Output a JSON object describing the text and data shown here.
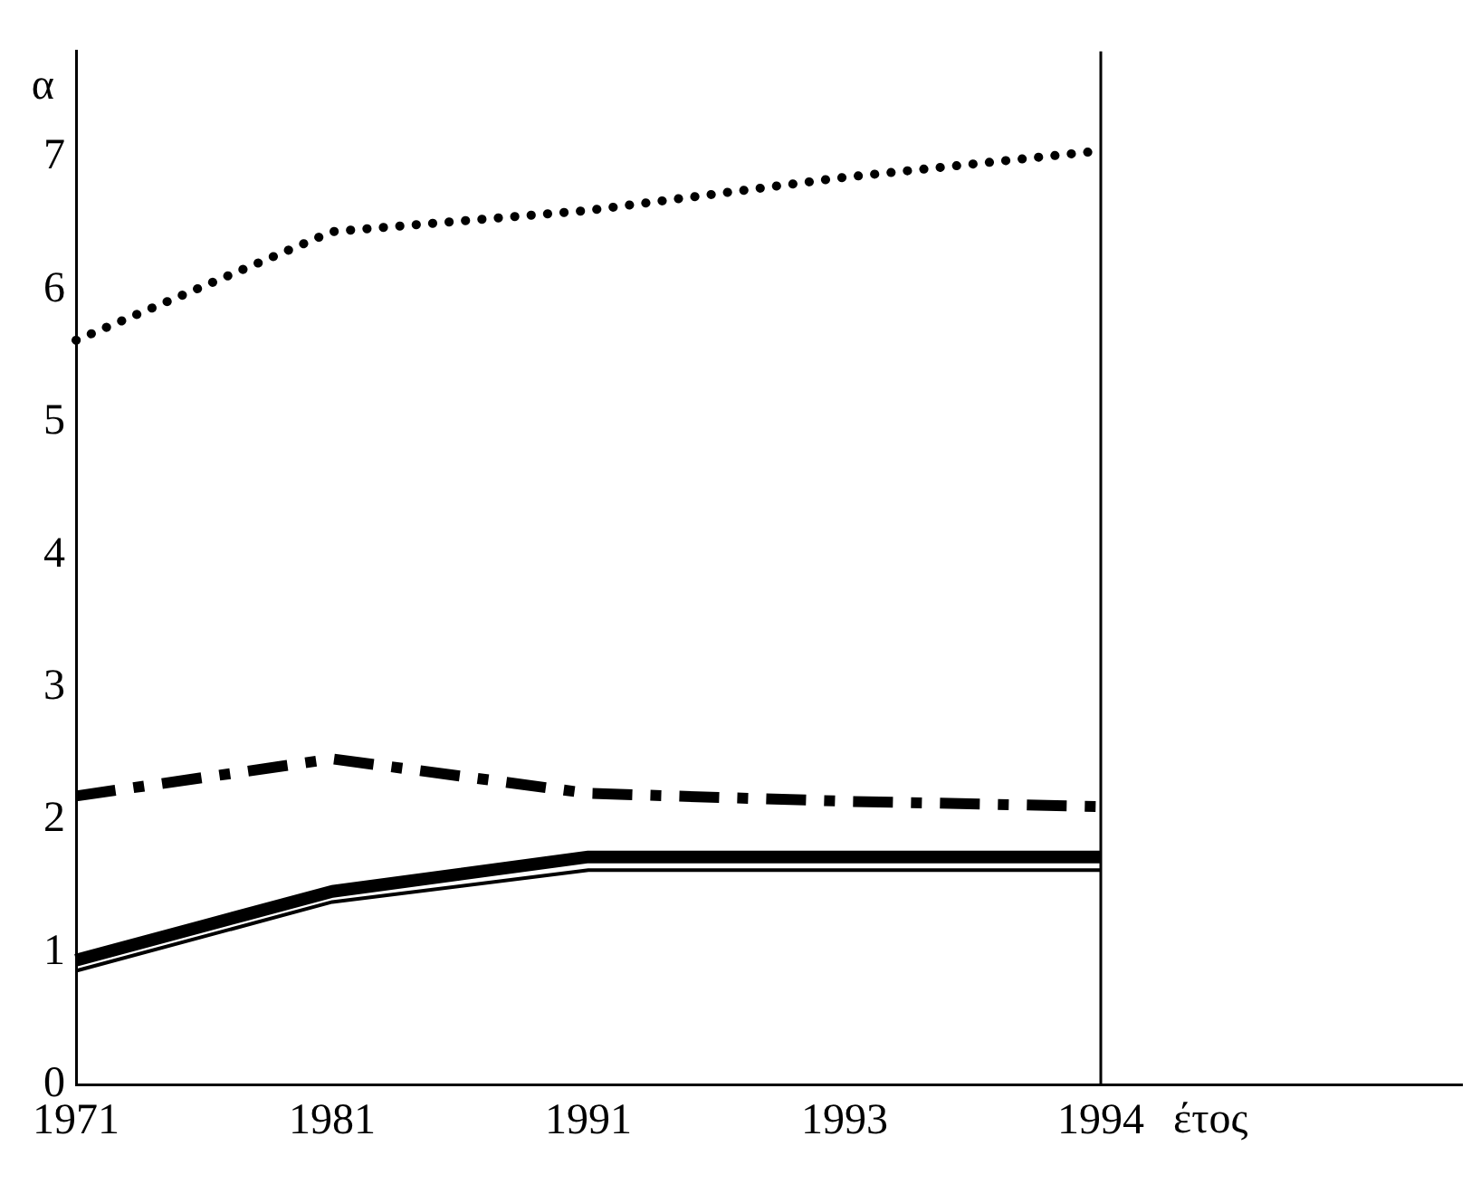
{
  "chart_data": {
    "type": "line",
    "xlabel": "έτος",
    "ylabel": "α",
    "categories": [
      "1971",
      "1981",
      "1991",
      "1993",
      "1994"
    ],
    "series": [
      {
        "color": "#000000",
        "line_style": "dotted",
        "values": [
          5.62,
          6.44,
          6.6,
          6.85,
          7.05
        ]
      },
      {
        "color": "#000000",
        "line_style": "dashed",
        "values": [
          2.18,
          2.46,
          2.2,
          2.14,
          2.1
        ]
      },
      {
        "color": "#000000",
        "line_style": "solid",
        "values": [
          0.94,
          1.46,
          1.72,
          1.72,
          1.72
        ]
      },
      {
        "color": "#000000",
        "line_style": "solid",
        "values": [
          0.86,
          1.38,
          1.62,
          1.62,
          1.62
        ]
      }
    ],
    "ylim": [
      0,
      7.8
    ],
    "yticks": [
      0,
      1,
      2,
      3,
      4,
      5,
      6,
      7
    ],
    "ref_lines": [
      {
        "axis": "x",
        "value": "1994",
        "color": "#000000"
      }
    ],
    "grid": false,
    "legend": false,
    "marker": "none"
  }
}
